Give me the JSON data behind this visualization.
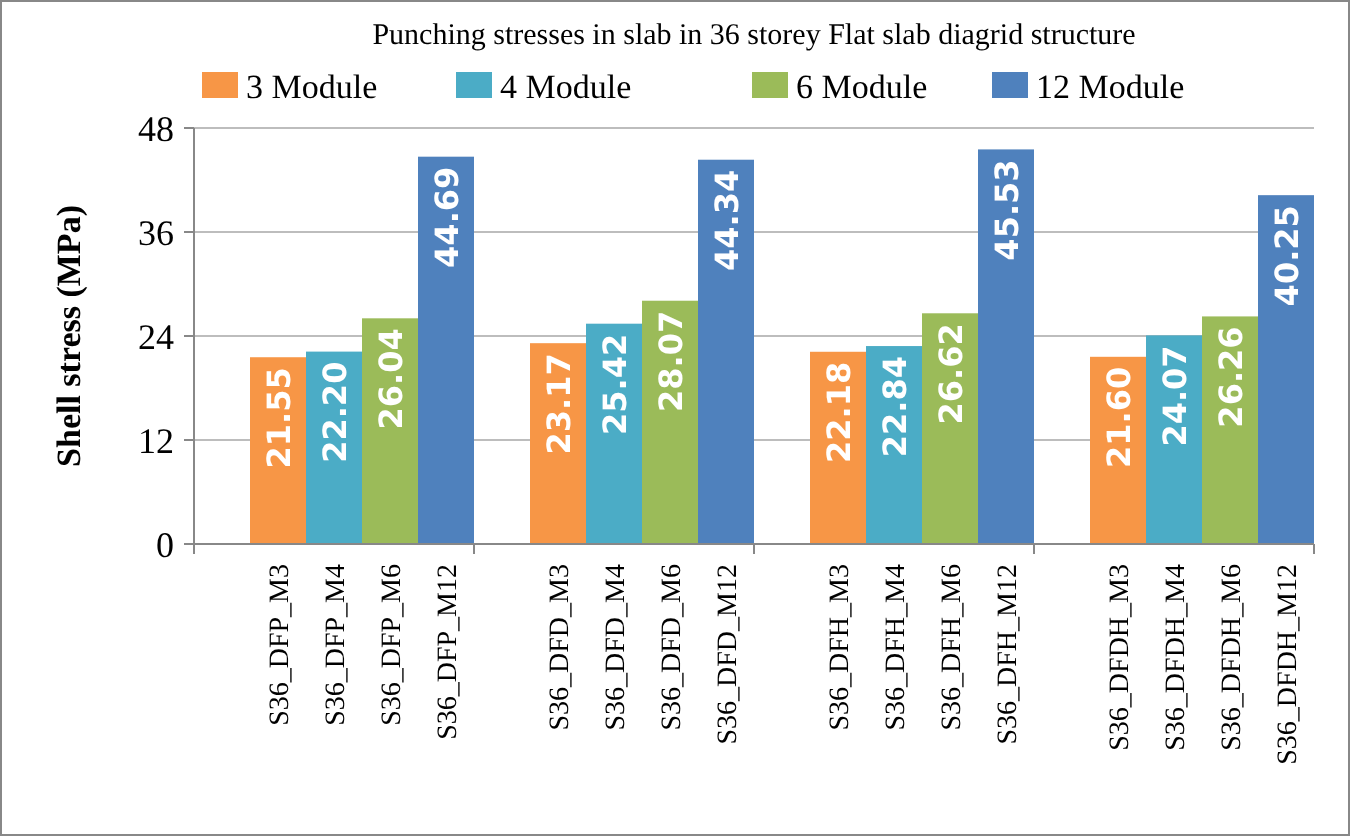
{
  "chart_data": {
    "type": "bar",
    "title": "Punching stresses in slab in 36 storey Flat slab diagrid structure",
    "ylabel": "Shell stress (MPa)",
    "categories": [
      "S36_DFP_M3",
      "S36_DFP_M4",
      "S36_DFP_M6",
      "S36_DFP_M12",
      "S36_DFD_M3",
      "S36_DFD_M4",
      "S36_DFD_M6",
      "S36_DFD_M12",
      "S36_DFH_M3",
      "S36_DFH_M4",
      "S36_DFH_M6",
      "S36_DFH_M12",
      "S36_DFDH_M3",
      "S36_DFDH_M4",
      "S36_DFDH_M6",
      "S36_DFDH_M12"
    ],
    "series": [
      {
        "name": "3 Module",
        "color": "#f79646",
        "values": [
          21.55,
          null,
          null,
          null,
          23.17,
          null,
          null,
          null,
          22.18,
          null,
          null,
          null,
          21.6,
          null,
          null,
          null
        ],
        "value_labels": [
          "21.55",
          null,
          null,
          null,
          "23.17",
          null,
          null,
          null,
          "22.18",
          null,
          null,
          null,
          "21.60",
          null,
          null,
          null
        ]
      },
      {
        "name": "4 Module",
        "color": "#4bacc6",
        "values": [
          null,
          22.2,
          null,
          null,
          null,
          25.42,
          null,
          null,
          null,
          22.84,
          null,
          null,
          null,
          24.07,
          null,
          null
        ],
        "value_labels": [
          null,
          "22.20",
          null,
          null,
          null,
          "25.42",
          null,
          null,
          null,
          "22.84",
          null,
          null,
          null,
          "24.07",
          null,
          null
        ]
      },
      {
        "name": "6 Module",
        "color": "#9bbb59",
        "values": [
          null,
          null,
          26.04,
          null,
          null,
          null,
          28.07,
          null,
          null,
          null,
          26.62,
          null,
          null,
          null,
          26.26,
          null
        ],
        "value_labels": [
          null,
          null,
          "26.04",
          null,
          null,
          null,
          "28.07",
          null,
          null,
          null,
          "26.62",
          null,
          null,
          null,
          "26.26",
          null
        ]
      },
      {
        "name": "12 Module",
        "color": "#4f81bd",
        "values": [
          null,
          null,
          null,
          44.69,
          null,
          null,
          null,
          44.34,
          null,
          null,
          null,
          45.53,
          null,
          null,
          null,
          40.25
        ],
        "value_labels": [
          null,
          null,
          null,
          "44.69",
          null,
          null,
          null,
          "44.34",
          null,
          null,
          null,
          "45.53",
          null,
          null,
          null,
          "40.25"
        ]
      }
    ],
    "ylim": [
      0,
      48
    ],
    "yticks": [
      0,
      12,
      24,
      36,
      48
    ],
    "grid": "y",
    "legend": "top"
  }
}
